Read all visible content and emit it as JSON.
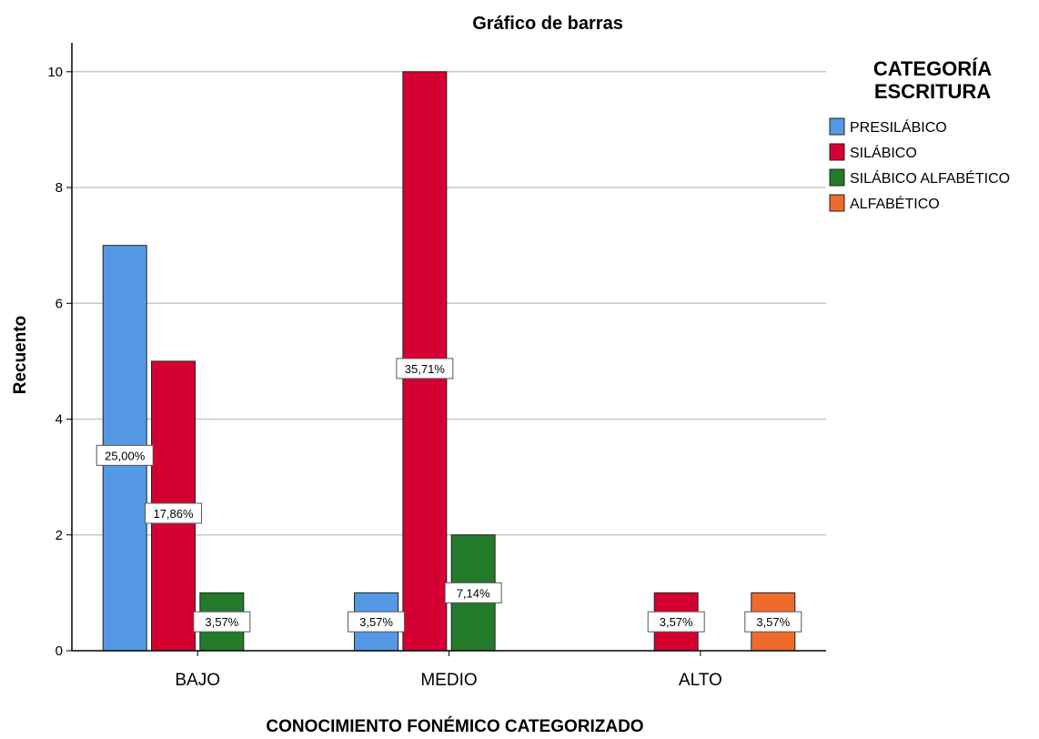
{
  "chart_data": {
    "type": "bar",
    "title": "Gráfico de barras",
    "xlabel": "CONOCIMIENTO FONÉMICO CATEGORIZADO",
    "ylabel": "Recuento",
    "ylim": [
      0,
      10.5
    ],
    "yticks": [
      0,
      2,
      4,
      6,
      8,
      10
    ],
    "grid": true,
    "legend_title_lines": [
      "CATEGORÍA",
      "ESCRITURA"
    ],
    "legend_position": "top-right",
    "categories": [
      "BAJO",
      "MEDIO",
      "ALTO"
    ],
    "series": [
      {
        "name": "PRESILÁBICO",
        "color": "#5599e6",
        "values": [
          7,
          1,
          0
        ],
        "labels": [
          "25,00%",
          "3,57%",
          ""
        ]
      },
      {
        "name": "SILÁBICO",
        "color": "#d50032",
        "values": [
          5,
          10,
          1
        ],
        "labels": [
          "17,86%",
          "35,71%",
          "3,57%"
        ]
      },
      {
        "name": "SILÁBICO ALFABÉTICO",
        "color": "#237a2b",
        "values": [
          1,
          2,
          0
        ],
        "labels": [
          "3,57%",
          "7,14%",
          ""
        ]
      },
      {
        "name": "ALFABÉTICO",
        "color": "#ef6b2b",
        "values": [
          0,
          0,
          1
        ],
        "labels": [
          "",
          "",
          "3,57%"
        ]
      }
    ]
  }
}
